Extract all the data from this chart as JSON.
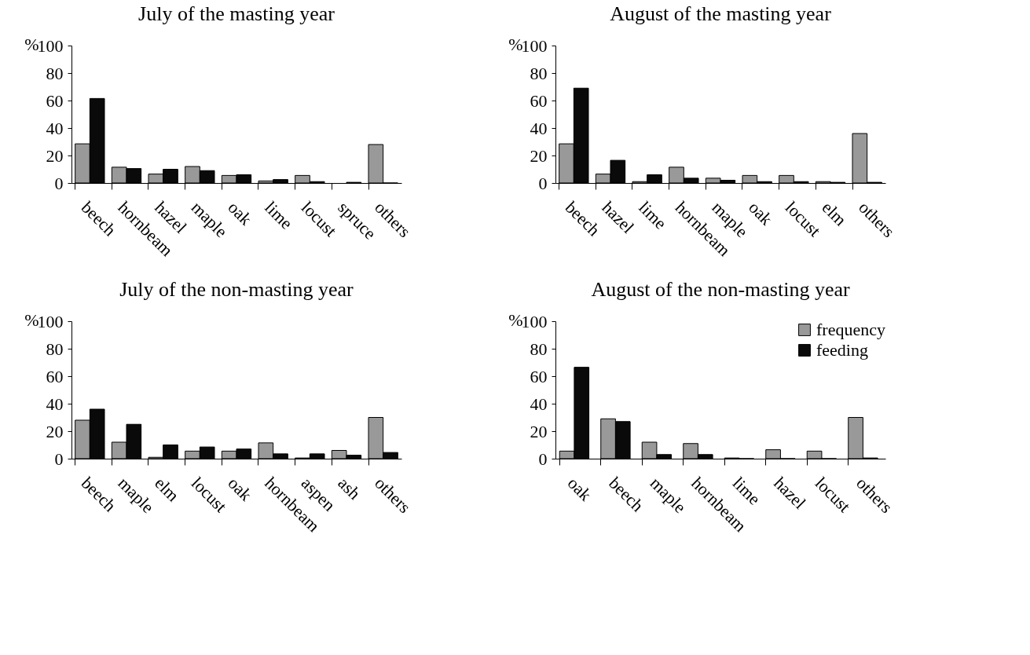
{
  "chart_data": [
    {
      "type": "bar",
      "title": "July of the masting year",
      "ylabel": "%",
      "categories": [
        "beech",
        "hornbeam",
        "hazel",
        "maple",
        "oak",
        "lime",
        "locust",
        "spruce",
        "others"
      ],
      "series": [
        {
          "color": "#999999",
          "values": [
            28.5,
            11.5,
            6.5,
            12,
            5.5,
            1.5,
            5.5,
            null,
            28
          ]
        },
        {
          "color": "#0a0a0a",
          "values": [
            61.5,
            10.5,
            10,
            9,
            6,
            2.5,
            1,
            0.5,
            0
          ]
        }
      ],
      "ylim": [
        0,
        100
      ],
      "yticks": [
        0,
        20,
        40,
        60,
        80,
        100
      ],
      "grid": false,
      "legend": false
    },
    {
      "type": "bar",
      "title": "August of the masting year",
      "ylabel": "%",
      "categories": [
        "beech",
        "hazel",
        "lime",
        "hornbeam",
        "maple",
        "oak",
        "locust",
        "elm",
        "others"
      ],
      "series": [
        {
          "color": "#999999",
          "values": [
            28.5,
            6.5,
            1,
            11.5,
            3.5,
            5.5,
            5.5,
            1,
            36
          ]
        },
        {
          "color": "#0a0a0a",
          "values": [
            69,
            16.5,
            6,
            3.5,
            2,
            1,
            1,
            0.5,
            0.5
          ]
        }
      ],
      "ylim": [
        0,
        100
      ],
      "yticks": [
        0,
        20,
        40,
        60,
        80,
        100
      ],
      "grid": false,
      "legend": false
    },
    {
      "type": "bar",
      "title": "July of the non-masting year",
      "ylabel": "%",
      "categories": [
        "beech",
        "maple",
        "elm",
        "locust",
        "oak",
        "hornbeam",
        "aspen",
        "ash",
        "others"
      ],
      "series": [
        {
          "color": "#999999",
          "values": [
            28,
            12,
            1,
            5.5,
            5.5,
            11.5,
            0.5,
            6,
            30
          ]
        },
        {
          "color": "#0a0a0a",
          "values": [
            36,
            25,
            10,
            8.5,
            7,
            3.5,
            3.5,
            2.5,
            4.5
          ]
        }
      ],
      "ylim": [
        0,
        100
      ],
      "yticks": [
        0,
        20,
        40,
        60,
        80,
        100
      ],
      "grid": false,
      "legend": false
    },
    {
      "type": "bar",
      "title": "August of the non-masting year",
      "ylabel": "%",
      "categories": [
        "oak",
        "beech",
        "maple",
        "hornbeam",
        "lime",
        "hazel",
        "locust",
        "others"
      ],
      "series": [
        {
          "name": "frequency",
          "color": "#999999",
          "values": [
            5.5,
            29,
            12,
            11,
            0.5,
            6.5,
            5.5,
            30
          ]
        },
        {
          "name": "feeding",
          "color": "#0a0a0a",
          "values": [
            66.5,
            27,
            3,
            3,
            0,
            0,
            0,
            0.5
          ]
        }
      ],
      "ylim": [
        0,
        100
      ],
      "yticks": [
        0,
        20,
        40,
        60,
        80,
        100
      ],
      "grid": false,
      "legend": "top right"
    }
  ]
}
